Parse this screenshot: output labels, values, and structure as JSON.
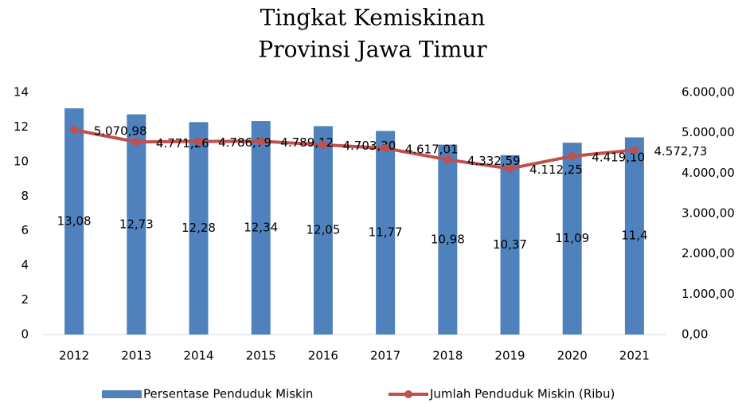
{
  "chart_data": {
    "type": "bar",
    "title": [
      "Tingkat Kemiskinan",
      "Provinsi Jawa Timur"
    ],
    "categories": [
      "2012",
      "2013",
      "2014",
      "2015",
      "2016",
      "2017",
      "2018",
      "2019",
      "2020",
      "2021"
    ],
    "series": [
      {
        "name": "Persentase Penduduk Miskin",
        "color": "#4f81bd",
        "type": "bar",
        "values": [
          13.08,
          12.73,
          12.28,
          12.34,
          12.05,
          11.77,
          10.98,
          10.37,
          11.09,
          11.4
        ],
        "value_labels": [
          "13,08",
          "12,73",
          "12,28",
          "12,34",
          "12,05",
          "11,77",
          "10,98",
          "10,37",
          "11,09",
          "11,4"
        ]
      },
      {
        "name": "Jumlah Penduduk Miskin (Ribu)",
        "color": "#c0504d",
        "type": "line",
        "axis": "y2",
        "values": [
          5070.98,
          4771.26,
          4786.79,
          4789.12,
          4703.3,
          4617.01,
          4332.59,
          4112.25,
          4419.1,
          4572.73
        ],
        "value_labels": [
          "5.070,98",
          "4.771,26",
          "4.786,79",
          "4.789,12",
          "4.703,30",
          "4.617,01",
          "4.332,59",
          "4.112,25",
          "4.419,10",
          "4.572,73"
        ]
      }
    ],
    "ylim": [
      0,
      14
    ],
    "yticks": [
      0,
      2,
      4,
      6,
      8,
      10,
      12,
      14
    ],
    "y2lim": [
      0,
      6000
    ],
    "y2ticks": [
      {
        "value": 0,
        "label": "0,00"
      },
      {
        "value": 1000,
        "label": "1.000,00"
      },
      {
        "value": 2000,
        "label": "2.000,00"
      },
      {
        "value": 3000,
        "label": "3.000,00"
      },
      {
        "value": 4000,
        "label": "4.000,00"
      },
      {
        "value": 5000,
        "label": "5.000,00"
      },
      {
        "value": 6000,
        "label": "6.000,00"
      }
    ],
    "legend": "bottom"
  }
}
